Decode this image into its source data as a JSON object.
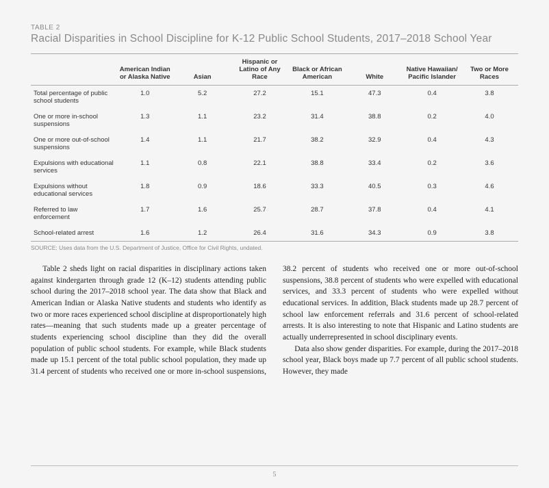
{
  "table": {
    "label": "TABLE 2",
    "title": "Racial Disparities in School Discipline for K-12 Public School Students, 2017–2018 School Year",
    "columns": [
      "",
      "American Indian or Alaska Native",
      "Asian",
      "Hispanic or Latino of Any Race",
      "Black or African American",
      "White",
      "Native Hawaiian/ Pacific Islander",
      "Two or More Races"
    ],
    "rows": [
      {
        "label": "Total percentage of public school students",
        "vals": [
          "1.0",
          "5.2",
          "27.2",
          "15.1",
          "47.3",
          "0.4",
          "3.8"
        ]
      },
      {
        "label": "One or more in-school suspensions",
        "vals": [
          "1.3",
          "1.1",
          "23.2",
          "31.4",
          "38.8",
          "0.2",
          "4.0"
        ]
      },
      {
        "label": "One or more out-of-school suspensions",
        "vals": [
          "1.4",
          "1.1",
          "21.7",
          "38.2",
          "32.9",
          "0.4",
          "4.3"
        ]
      },
      {
        "label": "Expulsions with educational services",
        "vals": [
          "1.1",
          "0.8",
          "22.1",
          "38.8",
          "33.4",
          "0.2",
          "3.6"
        ]
      },
      {
        "label": "Expulsions without educational services",
        "vals": [
          "1.8",
          "0.9",
          "18.6",
          "33.3",
          "40.5",
          "0.3",
          "4.6"
        ]
      },
      {
        "label": "Referred to law enforcement",
        "vals": [
          "1.7",
          "1.6",
          "25.7",
          "28.7",
          "37.8",
          "0.4",
          "4.1"
        ]
      },
      {
        "label": "School-related arrest",
        "vals": [
          "1.6",
          "1.2",
          "26.4",
          "31.6",
          "34.3",
          "0.9",
          "3.8"
        ]
      }
    ],
    "source": "SOURCE: Uses data from the U.S. Department of Justice, Office for Civil Rights, undated."
  },
  "body": {
    "p1": "Table 2 sheds light on racial disparities in disciplinary actions taken against kindergarten through grade 12 (K–12) students attending public school during the 2017–2018 school year. The data show that Black and American Indian or Alaska Native students and students who identify as two or more races experienced school discipline at disproportionately high rates—meaning that such students made up a greater percentage of students experiencing school discipline than they did the overall population of public school students. For example, while Black students made up 15.1 percent of the total public school population, they made up 31.4 percent of students who received one or more in-school suspensions, 38.2 percent of students who received one or more out-of-school suspensions, 38.8 percent of students who were expelled with educational services, and 33.3 percent of students who were expelled without educational services. In addition, Black students made up 28.7 percent of school law enforcement referrals and 31.6 percent of school-related arrests. It is also interesting to note that Hispanic and Latino students are actually underrepresented in school disciplinary events.",
    "p2": "Data also show gender disparities. For example, during the 2017–2018 school year, Black boys made up 7.7 percent of all public school students. However, they made"
  },
  "page": "5",
  "style": {
    "background": "#f5f5f5",
    "text_color": "#333",
    "muted_color": "#888",
    "rule_color": "#aaa",
    "table_font_size": 9.5,
    "title_font_size": 15.5,
    "body_font_size": 11.5,
    "body_font": "Georgia, serif"
  }
}
